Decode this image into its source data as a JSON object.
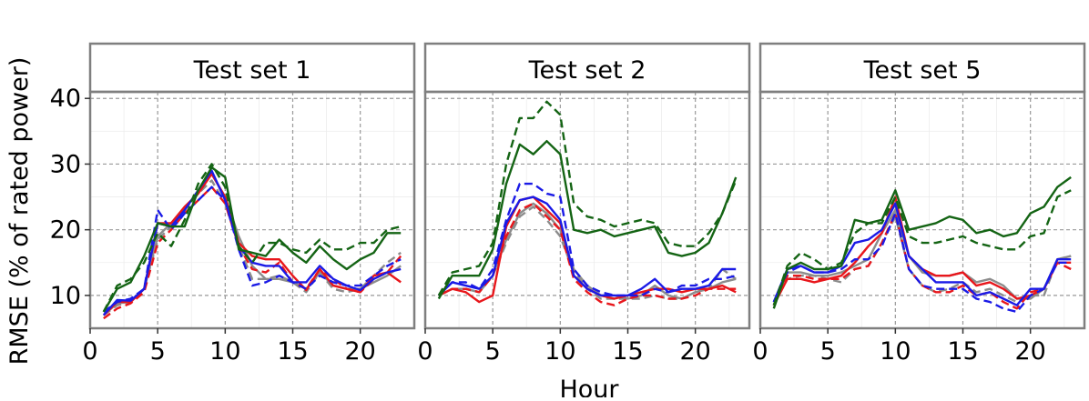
{
  "colors": {
    "gray": "#8c8c8c",
    "red": "#e8161b",
    "blue": "#1a1ae6",
    "green": "#146414",
    "grid": "#999999",
    "frame": "#7f7f7f"
  },
  "chart_data": {
    "type": "line",
    "xlabel": "Hour",
    "ylabel": "RMSE (% of rated power)",
    "xlim": [
      0,
      24
    ],
    "ylim": [
      5,
      41
    ],
    "xticks": [
      0,
      5,
      10,
      15,
      20
    ],
    "yticks": [
      10,
      20,
      30,
      40
    ],
    "grid": true,
    "x": [
      1,
      2,
      3,
      4,
      5,
      6,
      7,
      8,
      9,
      10,
      11,
      12,
      13,
      14,
      15,
      16,
      17,
      18,
      19,
      20,
      21,
      22,
      23
    ],
    "panels": [
      {
        "title": "Test set 1",
        "series": [
          {
            "color": "gray",
            "dash": "solid",
            "values": [
              7,
              8.8,
              9.0,
              11,
              19,
              21,
              23,
              26,
              28.5,
              25,
              19,
              14.5,
              12.5,
              12.5,
              12,
              11,
              13.5,
              11.5,
              11,
              11,
              12,
              13,
              14.5
            ]
          },
          {
            "color": "gray",
            "dash": "dashed",
            "values": [
              7,
              8.5,
              9.0,
              11,
              18.5,
              20.5,
              23,
              25.5,
              27.5,
              24,
              17.5,
              12.5,
              12.5,
              13,
              12,
              10.5,
              13.5,
              11,
              10.5,
              11,
              13,
              15,
              16.5
            ]
          },
          {
            "color": "red",
            "dash": "solid",
            "values": [
              7,
              9,
              9,
              11,
              21,
              21,
              23.5,
              25.5,
              28.5,
              25,
              18,
              16,
              15.5,
              15.5,
              13,
              10.8,
              14,
              11.5,
              11,
              10.5,
              13,
              13.5,
              12
            ]
          },
          {
            "color": "red",
            "dash": "dashed",
            "values": [
              6.5,
              8,
              8.8,
              10.5,
              18,
              20,
              22.5,
              24.5,
              26.5,
              24,
              17.5,
              14,
              13.5,
              15,
              12,
              11,
              14,
              12.5,
              11,
              10.5,
              12.5,
              13.5,
              16
            ]
          },
          {
            "color": "blue",
            "dash": "solid",
            "values": [
              7,
              9.3,
              9.2,
              11,
              21,
              20.5,
              23,
              26,
              29,
              24.5,
              17.5,
              15,
              14.5,
              14.5,
              12,
              12,
              14.5,
              12.5,
              11.5,
              10.8,
              12.5,
              13.5,
              14
            ]
          },
          {
            "color": "blue",
            "dash": "dashed",
            "values": [
              7.5,
              9,
              9.5,
              11,
              23,
              20,
              22.5,
              24.5,
              26.5,
              24.5,
              17,
              11.5,
              12,
              13,
              12,
              11,
              13,
              12,
              11.5,
              11.5,
              13,
              14.5,
              15.5
            ]
          },
          {
            "color": "green",
            "dash": "solid",
            "values": [
              7.5,
              11,
              12,
              16,
              21,
              20.5,
              20.5,
              26,
              29.5,
              28,
              17,
              16.5,
              16,
              18.5,
              16.5,
              15,
              17.5,
              15.5,
              14,
              15.5,
              16.5,
              19.5,
              19.5
            ]
          },
          {
            "color": "green",
            "dash": "dashed",
            "values": [
              7.5,
              11.5,
              12.5,
              15,
              19.5,
              17.5,
              21.5,
              27,
              30,
              26.5,
              17.5,
              15,
              18,
              18,
              17,
              16.5,
              18.5,
              17,
              17,
              18,
              18,
              20,
              20.5
            ]
          }
        ]
      },
      {
        "title": "Test set 2",
        "series": [
          {
            "color": "gray",
            "dash": "solid",
            "values": [
              10,
              11,
              11,
              10.5,
              13,
              18.5,
              22.5,
              24,
              22.5,
              20,
              14,
              11.5,
              10,
              10,
              9.5,
              10,
              11.5,
              10,
              9.5,
              10.5,
              11,
              12,
              12.5
            ]
          },
          {
            "color": "gray",
            "dash": "dashed",
            "values": [
              10,
              11,
              11,
              10.5,
              13,
              18,
              22,
              23.5,
              21.5,
              19,
              13.5,
              11,
              9.5,
              9.5,
              9.5,
              9.5,
              10,
              9.5,
              9.5,
              10.5,
              11,
              14,
              12.5
            ]
          },
          {
            "color": "red",
            "dash": "solid",
            "values": [
              10,
              11,
              10.5,
              9,
              10,
              20.5,
              24.5,
              25,
              23,
              21,
              13,
              11,
              10,
              9.5,
              10,
              10.5,
              11,
              11,
              10.5,
              11,
              11,
              11.5,
              10.5
            ]
          },
          {
            "color": "red",
            "dash": "dashed",
            "values": [
              10,
              11,
              11,
              10.5,
              13,
              19,
              23,
              24,
              22,
              20,
              12.5,
              10.5,
              9,
              8.5,
              9.5,
              10,
              10,
              9.5,
              9.5,
              10,
              11,
              11,
              11
            ]
          },
          {
            "color": "blue",
            "dash": "solid",
            "values": [
              10,
              12,
              11.5,
              11,
              13,
              21,
              24.5,
              25,
              24,
              21.5,
              13,
              11,
              10,
              10,
              10,
              11,
              12.5,
              10.5,
              11,
              11,
              11.5,
              14,
              14
            ]
          },
          {
            "color": "blue",
            "dash": "dashed",
            "values": [
              10,
              12,
              12,
              11,
              14,
              21.5,
              27,
              27,
              25.5,
              25,
              14,
              11.5,
              10.5,
              10,
              10,
              10,
              11,
              10.5,
              11.5,
              11.5,
              12.5,
              12.5,
              13
            ]
          },
          {
            "color": "green",
            "dash": "solid",
            "values": [
              9.5,
              13,
              13,
              13,
              17,
              27,
              33,
              31.5,
              33.5,
              31.5,
              20,
              19.5,
              20,
              19,
              19.5,
              20,
              20.5,
              16.5,
              16,
              16.5,
              18,
              22.5,
              28
            ]
          },
          {
            "color": "green",
            "dash": "dashed",
            "values": [
              10,
              13.5,
              14,
              14.5,
              18,
              30,
              37,
              37,
              39.5,
              37.5,
              24,
              22,
              21.5,
              20.5,
              21,
              21.5,
              21,
              18,
              17.5,
              17.5,
              19.5,
              22.5,
              27.5
            ]
          }
        ]
      },
      {
        "title": "Test set 5",
        "series": [
          {
            "color": "gray",
            "dash": "solid",
            "values": [
              8.5,
              13.5,
              13.5,
              13,
              13,
              13.5,
              14.5,
              15.5,
              19.5,
              23,
              16,
              13.5,
              13,
              13,
              13.5,
              12,
              12.5,
              11.5,
              9.5,
              9.5,
              11,
              15.5,
              16
            ]
          },
          {
            "color": "gray",
            "dash": "dashed",
            "values": [
              8.5,
              12.5,
              13,
              13,
              12.5,
              12,
              14,
              14.5,
              18,
              22,
              14,
              11.5,
              10.5,
              11,
              12,
              10.5,
              11,
              10,
              9,
              10,
              10,
              15.5,
              16
            ]
          },
          {
            "color": "red",
            "dash": "solid",
            "values": [
              8.5,
              12.5,
              12.5,
              12,
              12.5,
              13,
              15,
              17.5,
              19.5,
              25,
              16,
              14,
              13,
              13,
              13.5,
              11.5,
              12,
              11,
              9.5,
              10,
              11,
              15,
              15
            ]
          },
          {
            "color": "red",
            "dash": "dashed",
            "values": [
              8.5,
              13,
              13,
              12.5,
              12.5,
              12.5,
              14,
              14.5,
              18,
              22.5,
              14,
              11.5,
              10.5,
              10.5,
              11.5,
              10,
              10.5,
              9,
              8,
              10.5,
              11,
              15,
              14
            ]
          },
          {
            "color": "blue",
            "dash": "solid",
            "values": [
              9,
              14,
              14.5,
              13.5,
              13.5,
              14.5,
              18,
              18.5,
              20,
              24,
              16,
              14,
              12,
              12,
              12,
              10,
              10.5,
              9.5,
              8.5,
              11,
              11,
              15.5,
              15.5
            ]
          },
          {
            "color": "blue",
            "dash": "dashed",
            "values": [
              9,
              13.5,
              14.5,
              13.5,
              13.5,
              14,
              15.5,
              15.5,
              17.5,
              22.5,
              14,
              11.5,
              11,
              11,
              11,
              9.5,
              9,
              8,
              7.5,
              10,
              11,
              15,
              15
            ]
          },
          {
            "color": "green",
            "dash": "solid",
            "values": [
              8,
              14,
              15,
              14,
              14,
              14.5,
              21.5,
              21,
              21.5,
              26,
              20,
              20.5,
              21,
              22,
              21.5,
              19.5,
              20,
              19,
              19.5,
              22.5,
              23.5,
              26.5,
              28
            ]
          },
          {
            "color": "green",
            "dash": "dashed",
            "values": [
              8.5,
              14.5,
              16.5,
              15.5,
              14,
              15,
              19.5,
              21,
              21,
              25,
              19,
              18,
              18,
              18.5,
              19,
              18,
              17.5,
              17,
              17,
              19,
              19.5,
              25,
              26
            ]
          }
        ]
      }
    ]
  }
}
